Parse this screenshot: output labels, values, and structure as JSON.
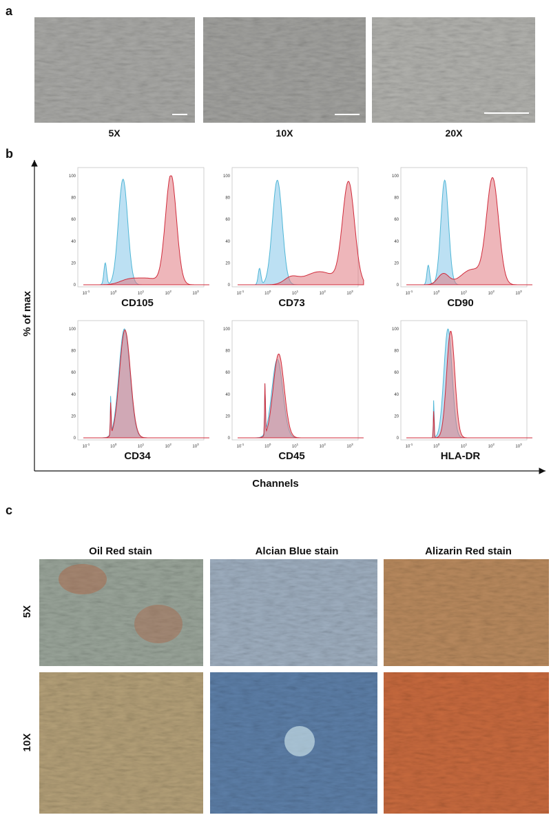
{
  "panel_a": {
    "letter": "a",
    "labels": [
      "5X",
      "10X",
      "20X"
    ]
  },
  "panel_b": {
    "letter": "b",
    "y_axis_label": "% of max",
    "x_axis_label": "Channels",
    "yticks": [
      "0",
      "20",
      "40",
      "60",
      "80",
      "100"
    ],
    "xticks": [
      {
        "base": "10",
        "exp": "-1"
      },
      {
        "base": "10",
        "exp": "0"
      },
      {
        "base": "10",
        "exp": "1"
      },
      {
        "base": "10",
        "exp": "2"
      },
      {
        "base": "10",
        "exp": "3"
      }
    ],
    "panels": [
      "CD105",
      "CD73",
      "CD90",
      "CD34",
      "CD45",
      "HLA-DR"
    ]
  },
  "panel_c": {
    "letter": "c",
    "columns": [
      "Oil Red stain",
      "Alcian Blue stain",
      "Alizarin Red stain"
    ],
    "rows": [
      "5X",
      "10X"
    ]
  }
}
